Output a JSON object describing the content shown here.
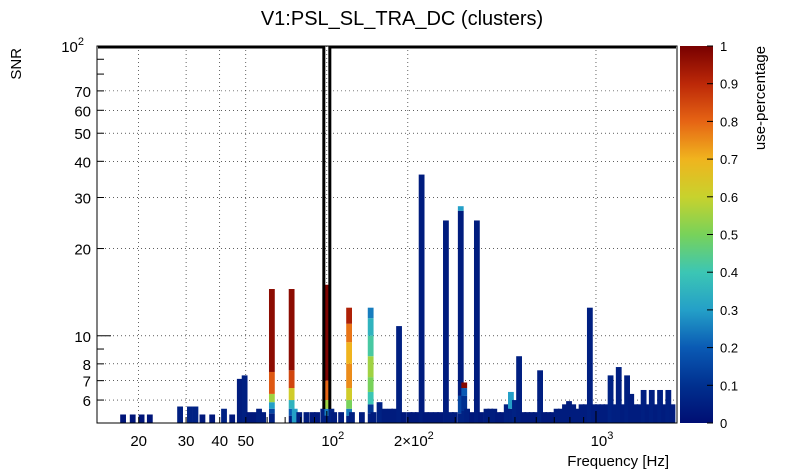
{
  "chart_data": {
    "type": "heatmap",
    "title": "V1:PSL_SL_TRA_DC (clusters)",
    "xlabel": "Frequency [Hz]",
    "ylabel": "SNR",
    "x_scale": "log",
    "y_scale": "log",
    "xlim": [
      14,
      2000
    ],
    "ylim": [
      5,
      100
    ],
    "x_tick_labels": [
      {
        "value": 20,
        "label": "20"
      },
      {
        "value": 30,
        "label": "30"
      },
      {
        "value": 40,
        "label": "40"
      },
      {
        "value": 50,
        "label": "50"
      },
      {
        "value": 100,
        "label": "10",
        "exp": "2"
      },
      {
        "value": 200,
        "label": "2×10",
        "exp": "2"
      },
      {
        "value": 1000,
        "label": "10",
        "exp": "3"
      }
    ],
    "y_tick_labels": [
      {
        "value": 6,
        "label": "6"
      },
      {
        "value": 7,
        "label": "7"
      },
      {
        "value": 8,
        "label": "8"
      },
      {
        "value": 10,
        "label": "10"
      },
      {
        "value": 20,
        "label": "20"
      },
      {
        "value": 30,
        "label": "30"
      },
      {
        "value": 40,
        "label": "40"
      },
      {
        "value": 50,
        "label": "50"
      },
      {
        "value": 60,
        "label": "60"
      },
      {
        "value": 70,
        "label": "70"
      },
      {
        "value": 100,
        "label": "10",
        "exp": "2"
      }
    ],
    "colorbar": {
      "label": "use-percentage",
      "range": [
        0,
        1
      ],
      "tick_labels": [
        "0",
        "0.1",
        "0.2",
        "0.3",
        "0.4",
        "0.5",
        "0.6",
        "0.7",
        "0.8",
        "0.9",
        "1"
      ]
    },
    "highlight_frequency_hz": 100,
    "grid": true,
    "columns": [
      {
        "f": 17.5,
        "snr": 5.35,
        "use": 0.02
      },
      {
        "f": 19,
        "snr": 5.35,
        "use": 0.02
      },
      {
        "f": 20.5,
        "snr": 5.35,
        "use": 0.02
      },
      {
        "f": 22,
        "snr": 5.35,
        "use": 0.02
      },
      {
        "f": 28.5,
        "snr": 5.7,
        "use": 0.05
      },
      {
        "f": 31,
        "snr": 5.7,
        "use": 0.06
      },
      {
        "f": 32.5,
        "snr": 5.7,
        "use": 0.06
      },
      {
        "f": 34.5,
        "snr": 5.35,
        "use": 0.03
      },
      {
        "f": 37.5,
        "snr": 5.35,
        "use": 0.03
      },
      {
        "f": 41.5,
        "snr": 5.6,
        "use": 0.06
      },
      {
        "f": 44.5,
        "snr": 5.35,
        "use": 0.03
      },
      {
        "f": 47.5,
        "snr": 7.1,
        "use": 0.04
      },
      {
        "f": 49.5,
        "snr": 7.3,
        "use": 0.05
      },
      {
        "f": 51.5,
        "snr": 5.45,
        "use": 0.03
      },
      {
        "f": 54,
        "snr": 5.45,
        "use": 0.03
      },
      {
        "f": 56,
        "snr": 5.6,
        "use": 0.05
      },
      {
        "f": 58,
        "snr": 5.45,
        "use": 0.04
      },
      {
        "f": 62.5,
        "snr": 14.5,
        "use": 0.97,
        "bands": [
          [
            5,
            5.4,
            0.05
          ],
          [
            5.4,
            5.6,
            0.15
          ],
          [
            5.6,
            5.9,
            0.3
          ],
          [
            5.9,
            6.3,
            0.55
          ],
          [
            6.3,
            7.5,
            0.82
          ],
          [
            7.5,
            14.5,
            0.97
          ]
        ]
      },
      {
        "f": 74,
        "snr": 14.5,
        "use": 0.97,
        "bands": [
          [
            5,
            5.3,
            0.05
          ],
          [
            5.3,
            5.6,
            0.2
          ],
          [
            5.6,
            6.0,
            0.35
          ],
          [
            6.0,
            6.6,
            0.62
          ],
          [
            6.6,
            7.6,
            0.85
          ],
          [
            7.6,
            14.5,
            0.97
          ]
        ]
      },
      {
        "f": 76,
        "snr": 5.6,
        "use": 0.3
      },
      {
        "f": 79,
        "snr": 5.45,
        "use": 0.04
      },
      {
        "f": 84,
        "snr": 5.45,
        "use": 0.04
      },
      {
        "f": 88.5,
        "snr": 5.45,
        "use": 0.03
      },
      {
        "f": 92,
        "snr": 5.45,
        "use": 0.03
      },
      {
        "f": 97,
        "snr": 5.6,
        "use": 0.05
      },
      {
        "f": 100.5,
        "snr": 15,
        "use": 0.99,
        "bands": [
          [
            5,
            5.3,
            0.05
          ],
          [
            5.3,
            5.6,
            0.25
          ],
          [
            5.6,
            6.0,
            0.55
          ],
          [
            6.0,
            7.0,
            0.8
          ],
          [
            7.0,
            15,
            0.99
          ]
        ]
      },
      {
        "f": 104,
        "snr": 5.6,
        "use": 0.06
      },
      {
        "f": 106.5,
        "snr": 5.45,
        "use": 0.04
      },
      {
        "f": 113,
        "snr": 5.45,
        "use": 0.04
      },
      {
        "f": 121,
        "snr": 12.5,
        "use": 0.92,
        "bands": [
          [
            5,
            5.3,
            0.06
          ],
          [
            5.3,
            5.6,
            0.25
          ],
          [
            5.6,
            6.0,
            0.5
          ],
          [
            6.0,
            6.6,
            0.62
          ],
          [
            6.6,
            8.0,
            0.75
          ],
          [
            8.0,
            9.5,
            0.7
          ],
          [
            9.5,
            11.0,
            0.78
          ],
          [
            11.0,
            12.5,
            0.92
          ]
        ]
      },
      {
        "f": 124,
        "snr": 5.45,
        "use": 0.05
      },
      {
        "f": 135,
        "snr": 5.45,
        "use": 0.04
      },
      {
        "f": 145.5,
        "snr": 12.5,
        "use": 0.3,
        "bands": [
          [
            5,
            5.4,
            0.05
          ],
          [
            5.4,
            5.8,
            0.12
          ],
          [
            5.8,
            6.4,
            0.4
          ],
          [
            6.4,
            7.2,
            0.5
          ],
          [
            7.2,
            8.5,
            0.55
          ],
          [
            8.5,
            10.0,
            0.42
          ],
          [
            10.0,
            11.5,
            0.35
          ],
          [
            11.5,
            12.5,
            0.25
          ]
        ]
      },
      {
        "f": 149,
        "snr": 5.45,
        "use": 0.04
      },
      {
        "f": 157,
        "snr": 5.9,
        "use": 0.06
      },
      {
        "f": 164,
        "snr": 5.6,
        "use": 0.04
      },
      {
        "f": 172,
        "snr": 5.6,
        "use": 0.04
      },
      {
        "f": 178,
        "snr": 5.6,
        "use": 0.04
      },
      {
        "f": 185.5,
        "snr": 10.8,
        "use": 0.05
      },
      {
        "f": 193,
        "snr": 5.45,
        "use": 0.03
      },
      {
        "f": 203,
        "snr": 5.45,
        "use": 0.03
      },
      {
        "f": 210,
        "snr": 5.45,
        "use": 0.03
      },
      {
        "f": 218,
        "snr": 5.45,
        "use": 0.03
      },
      {
        "f": 225,
        "snr": 36,
        "use": 0.04
      },
      {
        "f": 233,
        "snr": 5.45,
        "use": 0.03
      },
      {
        "f": 243,
        "snr": 5.45,
        "use": 0.03
      },
      {
        "f": 254,
        "snr": 5.45,
        "use": 0.03
      },
      {
        "f": 264,
        "snr": 5.45,
        "use": 0.03
      },
      {
        "f": 277,
        "snr": 25,
        "use": 0.04
      },
      {
        "f": 289,
        "snr": 5.45,
        "use": 0.04
      },
      {
        "f": 299,
        "snr": 5.45,
        "use": 0.04
      },
      {
        "f": 314.5,
        "snr": 28,
        "use": 0.04,
        "bands": [
          [
            5,
            5.4,
            0.06
          ],
          [
            5.4,
            6.2,
            0.15
          ],
          [
            6.2,
            27,
            0.04
          ],
          [
            27,
            28,
            0.3
          ]
        ]
      },
      {
        "f": 324,
        "snr": 6.9,
        "use": 0.98,
        "bands": [
          [
            5,
            5.5,
            0.06
          ],
          [
            5.5,
            6.2,
            0.1
          ],
          [
            6.2,
            6.6,
            0.2
          ],
          [
            6.6,
            6.9,
            0.98
          ]
        ]
      },
      {
        "f": 332,
        "snr": 5.6,
        "use": 0.05
      },
      {
        "f": 346,
        "snr": 5.45,
        "use": 0.03
      },
      {
        "f": 361,
        "snr": 25,
        "use": 0.04
      },
      {
        "f": 374,
        "snr": 5.45,
        "use": 0.03
      },
      {
        "f": 392,
        "snr": 5.6,
        "use": 0.04
      },
      {
        "f": 405,
        "snr": 5.6,
        "use": 0.04
      },
      {
        "f": 419,
        "snr": 5.6,
        "use": 0.04
      },
      {
        "f": 433,
        "snr": 5.45,
        "use": 0.03
      },
      {
        "f": 449,
        "snr": 5.45,
        "use": 0.03
      },
      {
        "f": 466,
        "snr": 5.8,
        "use": 0.05
      },
      {
        "f": 483,
        "snr": 6.4,
        "use": 0.05,
        "bands": [
          [
            5,
            5.6,
            0.05
          ],
          [
            5.6,
            6.4,
            0.3
          ]
        ]
      },
      {
        "f": 500,
        "snr": 6.0,
        "use": 0.06
      },
      {
        "f": 518,
        "snr": 8.5,
        "use": 0.05
      },
      {
        "f": 537,
        "snr": 5.45,
        "use": 0.03
      },
      {
        "f": 556,
        "snr": 5.45,
        "use": 0.03
      },
      {
        "f": 577,
        "snr": 5.45,
        "use": 0.03
      },
      {
        "f": 597,
        "snr": 5.45,
        "use": 0.03
      },
      {
        "f": 620,
        "snr": 7.6,
        "use": 0.05
      },
      {
        "f": 642,
        "snr": 5.45,
        "use": 0.03
      },
      {
        "f": 665,
        "snr": 5.45,
        "use": 0.03
      },
      {
        "f": 689,
        "snr": 5.45,
        "use": 0.03
      },
      {
        "f": 714,
        "snr": 5.6,
        "use": 0.04
      },
      {
        "f": 740,
        "snr": 5.6,
        "use": 0.04
      },
      {
        "f": 767,
        "snr": 5.8,
        "use": 0.04
      },
      {
        "f": 794,
        "snr": 5.95,
        "use": 0.04
      },
      {
        "f": 823,
        "snr": 5.8,
        "use": 0.04
      },
      {
        "f": 853,
        "snr": 5.6,
        "use": 0.04
      },
      {
        "f": 884,
        "snr": 5.8,
        "use": 0.04
      },
      {
        "f": 916,
        "snr": 5.8,
        "use": 0.04
      },
      {
        "f": 949,
        "snr": 12.5,
        "use": 0.05
      },
      {
        "f": 983,
        "snr": 5.8,
        "use": 0.04
      },
      {
        "f": 1018,
        "snr": 5.8,
        "use": 0.04
      },
      {
        "f": 1055,
        "snr": 5.8,
        "use": 0.04
      },
      {
        "f": 1093,
        "snr": 5.8,
        "use": 0.04
      },
      {
        "f": 1133,
        "snr": 7.3,
        "use": 0.06
      },
      {
        "f": 1173,
        "snr": 5.8,
        "use": 0.05
      },
      {
        "f": 1215,
        "snr": 7.8,
        "use": 0.05
      },
      {
        "f": 1259,
        "snr": 5.8,
        "use": 0.04
      },
      {
        "f": 1305,
        "snr": 7.3,
        "use": 0.05
      },
      {
        "f": 1352,
        "snr": 6.3,
        "use": 0.04
      },
      {
        "f": 1400,
        "snr": 5.8,
        "use": 0.04
      },
      {
        "f": 1451,
        "snr": 5.8,
        "use": 0.04
      },
      {
        "f": 1503,
        "snr": 6.5,
        "use": 0.05
      },
      {
        "f": 1556,
        "snr": 5.8,
        "use": 0.04
      },
      {
        "f": 1612,
        "snr": 6.5,
        "use": 0.05
      },
      {
        "f": 1670,
        "snr": 5.8,
        "use": 0.04
      },
      {
        "f": 1730,
        "snr": 6.5,
        "use": 0.05
      },
      {
        "f": 1792,
        "snr": 5.8,
        "use": 0.04
      },
      {
        "f": 1857,
        "snr": 6.5,
        "use": 0.05
      },
      {
        "f": 1924,
        "snr": 5.8,
        "use": 0.04
      }
    ]
  }
}
